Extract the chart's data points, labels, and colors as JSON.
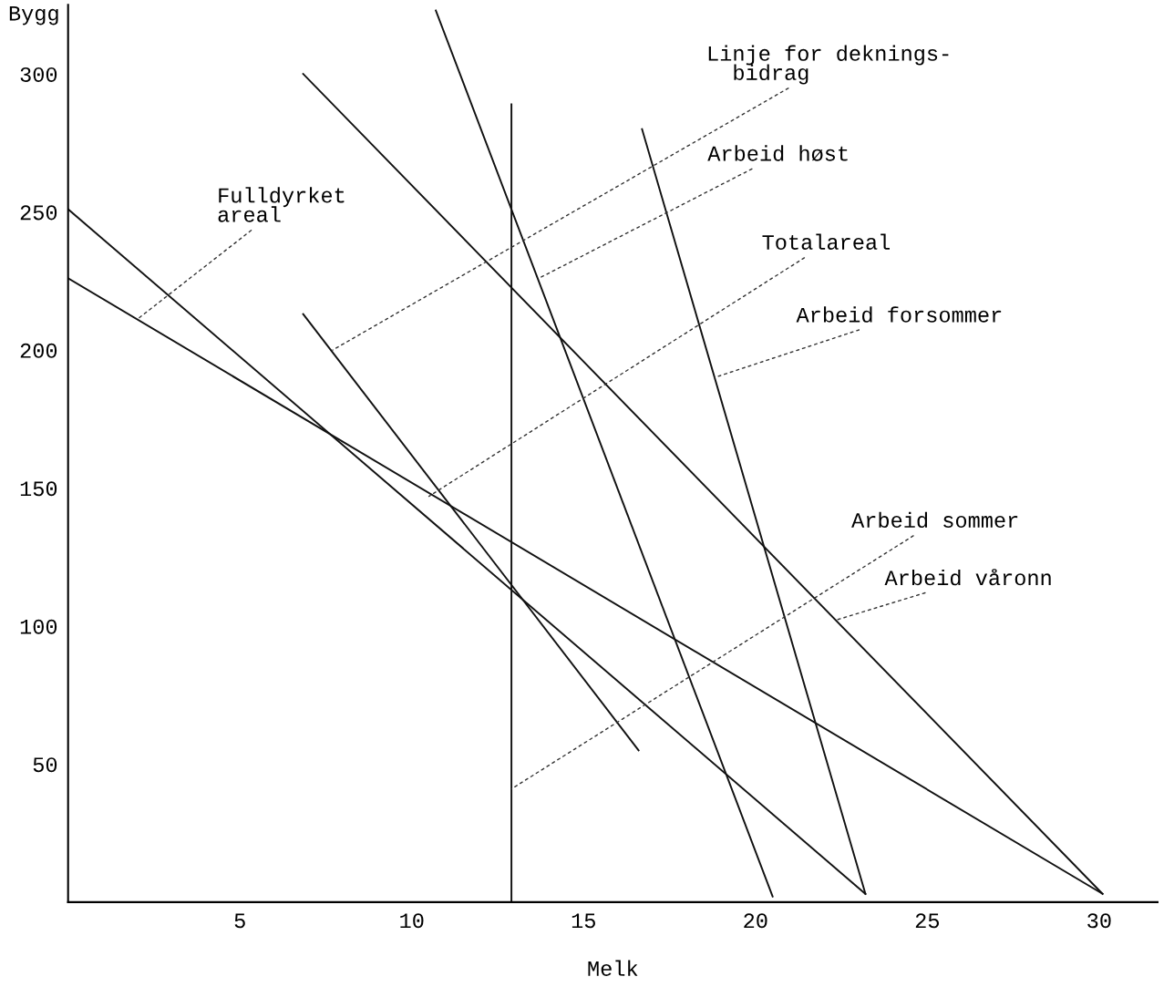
{
  "chart_data": {
    "type": "line",
    "xlabel": "Melk",
    "ylabel": "Bygg",
    "xlim": [
      0,
      31.7
    ],
    "ylim": [
      0,
      325
    ],
    "xticks": [
      5,
      10,
      15,
      20,
      25,
      30
    ],
    "yticks": [
      50,
      100,
      150,
      200,
      250,
      300
    ],
    "grid": false,
    "marker": "none",
    "line_style": "solid",
    "series": [
      {
        "color": "#111111",
        "x": [
          0,
          23.2
        ],
        "values": [
          251,
          3
        ]
      },
      {
        "color": "#111111",
        "x": [
          0,
          30.1
        ],
        "values": [
          226,
          3
        ]
      },
      {
        "color": "#111111",
        "x": [
          6.84,
          30.1
        ],
        "values": [
          300,
          3
        ]
      },
      {
        "color": "#111111",
        "x": [
          10.7,
          20.5
        ],
        "values": [
          323,
          2
        ]
      },
      {
        "color": "#111111",
        "x": [
          16.7,
          23.2
        ],
        "values": [
          280,
          3
        ]
      },
      {
        "color": "#111111",
        "x": [
          6.84,
          16.6
        ],
        "values": [
          213,
          55
        ]
      },
      {
        "color": "#111111",
        "x": [
          12.9,
          12.9
        ],
        "values": [
          0,
          289
        ]
      }
    ],
    "annotations": [
      {
        "text": "Linje for deknings-\n  bidrag",
        "x": 7.7,
        "y": 200
      },
      {
        "text": "Arbeid høst",
        "x": 13.7,
        "y": 226
      },
      {
        "text": "Totalareal",
        "x": 10.5,
        "y": 147
      },
      {
        "text": "Arbeid forsommer",
        "x": 18.8,
        "y": 190
      },
      {
        "text": "Arbeid sommer",
        "x": 12.9,
        "y": 41
      },
      {
        "text": "Arbeid våronn",
        "x": 22.3,
        "y": 102
      },
      {
        "text": "Fulldyrket\nareal",
        "x": 2.0,
        "y": 211
      }
    ]
  }
}
